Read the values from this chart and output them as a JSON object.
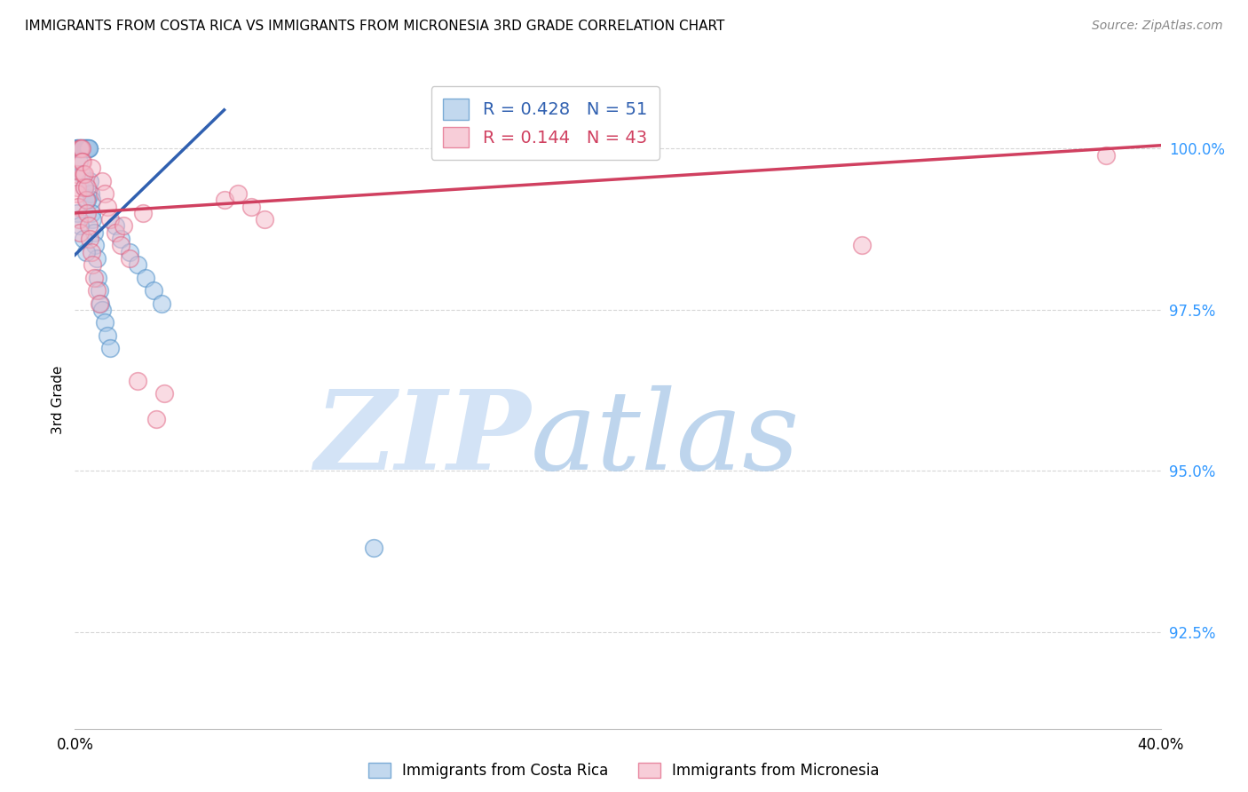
{
  "title": "IMMIGRANTS FROM COSTA RICA VS IMMIGRANTS FROM MICRONESIA 3RD GRADE CORRELATION CHART",
  "source": "Source: ZipAtlas.com",
  "ylabel": "3rd Grade",
  "xlim": [
    0.0,
    40.0
  ],
  "ylim": [
    91.0,
    101.2
  ],
  "yticks": [
    92.5,
    95.0,
    97.5,
    100.0
  ],
  "ytick_labels": [
    "92.5%",
    "95.0%",
    "97.5%",
    "100.0%"
  ],
  "legend_blue_R": "0.428",
  "legend_blue_N": "51",
  "legend_pink_R": "0.144",
  "legend_pink_N": "43",
  "blue_color": "#a8c8e8",
  "pink_color": "#f4b8c8",
  "blue_edge_color": "#5090c8",
  "pink_edge_color": "#e06080",
  "blue_line_color": "#3060b0",
  "pink_line_color": "#d04060",
  "watermark_zip": "ZIP",
  "watermark_atlas": "atlas",
  "watermark_color_zip": "#c8dff0",
  "watermark_color_atlas": "#a0c8e8",
  "background_color": "#ffffff",
  "grid_color": "#cccccc",
  "blue_x": [
    0.05,
    0.08,
    0.1,
    0.12,
    0.15,
    0.18,
    0.2,
    0.22,
    0.25,
    0.28,
    0.3,
    0.32,
    0.35,
    0.38,
    0.4,
    0.42,
    0.45,
    0.48,
    0.5,
    0.52,
    0.55,
    0.58,
    0.6,
    0.62,
    0.65,
    0.7,
    0.75,
    0.8,
    0.85,
    0.9,
    0.95,
    1.0,
    1.1,
    1.2,
    1.3,
    1.5,
    1.7,
    2.0,
    2.3,
    2.6,
    2.9,
    3.2,
    0.15,
    0.25,
    0.35,
    0.45,
    0.1,
    0.2,
    0.3,
    0.4,
    11.0
  ],
  "blue_y": [
    100.0,
    100.0,
    100.0,
    100.0,
    100.0,
    100.0,
    100.0,
    100.0,
    100.0,
    100.0,
    100.0,
    100.0,
    100.0,
    100.0,
    100.0,
    100.0,
    100.0,
    100.0,
    100.0,
    100.0,
    99.5,
    99.3,
    99.2,
    99.0,
    98.9,
    98.7,
    98.5,
    98.3,
    98.0,
    97.8,
    97.6,
    97.5,
    97.3,
    97.1,
    96.9,
    98.8,
    98.6,
    98.4,
    98.2,
    98.0,
    97.8,
    97.6,
    99.8,
    99.6,
    99.4,
    99.2,
    99.0,
    98.8,
    98.6,
    98.4,
    93.8
  ],
  "pink_x": [
    0.05,
    0.08,
    0.1,
    0.12,
    0.15,
    0.18,
    0.2,
    0.22,
    0.25,
    0.28,
    0.3,
    0.35,
    0.4,
    0.45,
    0.5,
    0.55,
    0.6,
    0.65,
    0.7,
    0.8,
    0.9,
    1.0,
    1.1,
    1.2,
    1.3,
    1.5,
    1.7,
    2.0,
    2.3,
    3.0,
    3.3,
    1.8,
    2.5,
    5.5,
    6.0,
    6.5,
    7.0,
    0.25,
    0.35,
    0.45,
    29.0,
    38.0,
    0.6
  ],
  "pink_y": [
    99.6,
    99.4,
    99.3,
    99.1,
    98.9,
    98.7,
    100.0,
    100.0,
    100.0,
    99.8,
    99.6,
    99.4,
    99.2,
    99.0,
    98.8,
    98.6,
    98.4,
    98.2,
    98.0,
    97.8,
    97.6,
    99.5,
    99.3,
    99.1,
    98.9,
    98.7,
    98.5,
    98.3,
    96.4,
    95.8,
    96.2,
    98.8,
    99.0,
    99.2,
    99.3,
    99.1,
    98.9,
    99.8,
    99.6,
    99.4,
    98.5,
    99.9,
    99.7
  ],
  "blue_line_x0": 0.0,
  "blue_line_x1": 5.5,
  "blue_line_y0": 98.35,
  "blue_line_y1": 100.6,
  "pink_line_x0": 0.0,
  "pink_line_x1": 40.0,
  "pink_line_y0": 99.0,
  "pink_line_y1": 100.05
}
